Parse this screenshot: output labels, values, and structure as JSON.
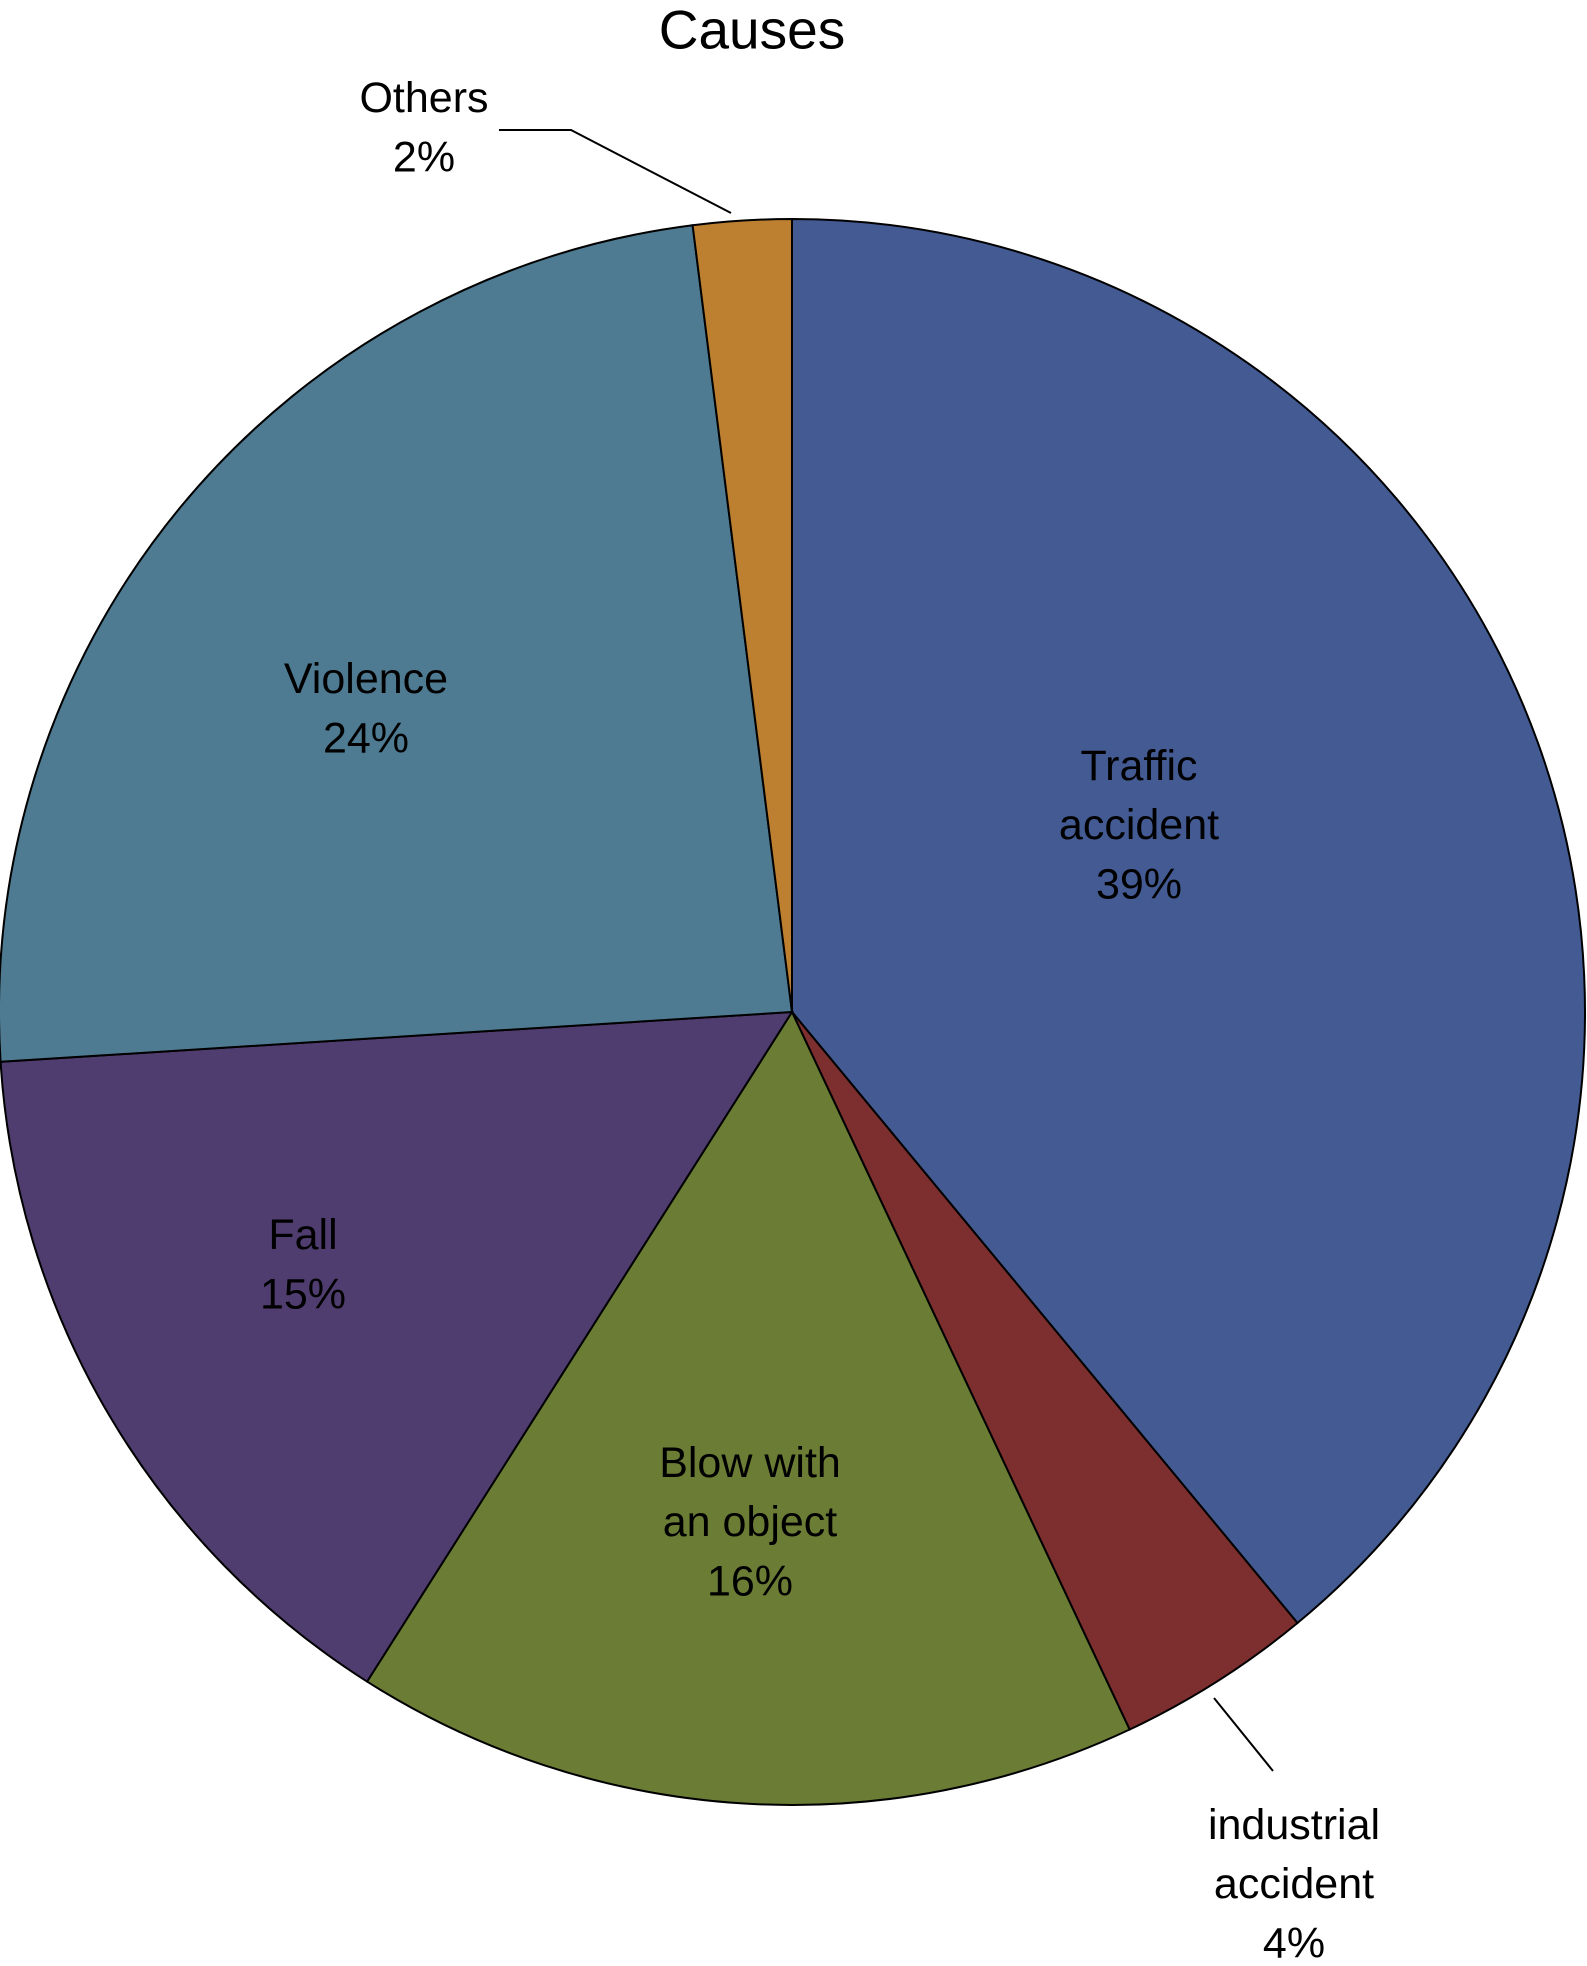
{
  "chart_data": {
    "type": "pie",
    "title": "Causes",
    "categories": [
      "Traffic accident",
      "industrial accident",
      "Blow with an object",
      "Fall",
      "Violence",
      "Others"
    ],
    "values": [
      39,
      4,
      16,
      15,
      24,
      2
    ],
    "value_labels": [
      "39%",
      "4%",
      "16%",
      "15%",
      "24%",
      "2%"
    ],
    "colors": [
      "#435a92",
      "#7d2f2f",
      "#6b7c35",
      "#503d6f",
      "#4e7b92",
      "#bd7f30"
    ]
  }
}
